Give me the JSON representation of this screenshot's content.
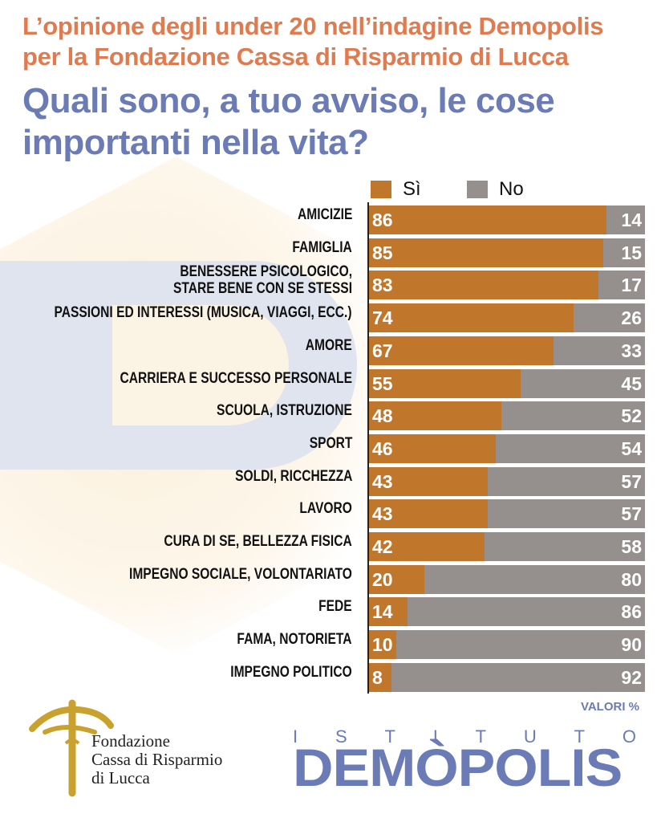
{
  "header": {
    "kicker_line1": "L’opinione degli under 20 nell’indagine Demopolis",
    "kicker_line2": "per la Fondazione Cassa di Risparmio di Lucca",
    "question_line1": "Quali sono, a tuo avviso, le cose",
    "question_line2": "importanti nella vita?"
  },
  "legend": {
    "si_label": "Sì",
    "no_label": "No"
  },
  "colors": {
    "si": "#c0762b",
    "no": "#958f8d",
    "kicker": "#e07b4f",
    "question": "#6a7bb6"
  },
  "chart_data": {
    "type": "bar",
    "orientation": "horizontal-stacked",
    "categories": [
      [
        "AMICIZIE"
      ],
      [
        "FAMIGLIA"
      ],
      [
        "BENESSERE PSICOLOGICO,",
        "STARE BENE CON SE STESSI"
      ],
      [
        "PASSIONI ED INTERESSI (MUSICA, VIAGGI, ECC.)"
      ],
      [
        "AMORE"
      ],
      [
        "CARRIERA E SUCCESSO PERSONALE"
      ],
      [
        "SCUOLA, ISTRUZIONE"
      ],
      [
        "SPORT"
      ],
      [
        "SOLDI, RICCHEZZA"
      ],
      [
        "LAVORO"
      ],
      [
        "CURA DI SE, BELLEZZA FISICA"
      ],
      [
        "IMPEGNO SOCIALE, VOLONTARIATO"
      ],
      [
        "FEDE"
      ],
      [
        "FAMA, NOTORIETA"
      ],
      [
        "IMPEGNO POLITICO"
      ]
    ],
    "series": [
      {
        "name": "Sì",
        "values": [
          86,
          85,
          83,
          74,
          67,
          55,
          48,
          46,
          43,
          43,
          42,
          20,
          14,
          10,
          8
        ]
      },
      {
        "name": "No",
        "values": [
          14,
          15,
          17,
          26,
          33,
          45,
          52,
          54,
          57,
          57,
          58,
          80,
          86,
          90,
          92
        ]
      }
    ],
    "xlim": [
      0,
      100
    ],
    "unit_note": "VALORI %",
    "legend_position": "top"
  },
  "logos": {
    "fondazione_lines": [
      "Fondazione",
      "Cassa di Risparmio",
      "di Lucca"
    ],
    "istituto_letters": [
      "I",
      "S",
      "T",
      "I",
      "T",
      "U",
      "T",
      "O"
    ],
    "demopolis_word": "DEMÒPOLIS"
  }
}
